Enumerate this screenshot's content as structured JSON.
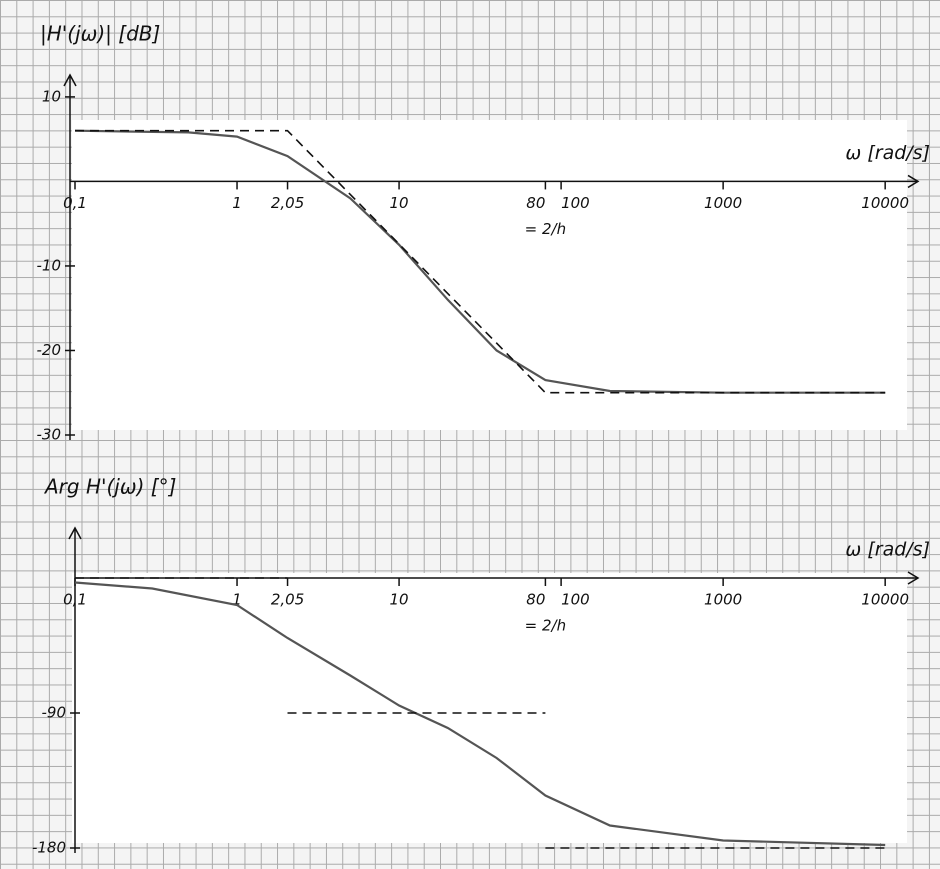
{
  "chart_data": [
    {
      "type": "line",
      "title": "|H'(jω)| [dB]",
      "x_label": "ω [rad/s]",
      "annotation": "= 2/h",
      "annotation_x": 80,
      "log_x": true,
      "xlim": [
        0.1,
        12000
      ],
      "ylim": [
        -30,
        12
      ],
      "xticks": [
        {
          "value": 0.1,
          "label": "0,1"
        },
        1,
        {
          "value": 2.05,
          "label": "2,05"
        },
        10,
        80,
        100,
        1000,
        10000
      ],
      "yticks": [
        10,
        -10,
        -20,
        -30
      ],
      "series": [
        {
          "color": "#555555",
          "dashed": false,
          "x": [
            0.1,
            0.5,
            1,
            2.05,
            5,
            10,
            20,
            40,
            80,
            200,
            1000,
            10000
          ],
          "values": [
            6,
            5.8,
            5.3,
            3,
            -2,
            -7.5,
            -14,
            -20,
            -23.5,
            -24.8,
            -25,
            -25
          ]
        },
        {
          "color": "#111111",
          "dashed": true,
          "x": [
            0.1,
            2.05,
            80,
            10000
          ],
          "values": [
            6,
            6,
            -25,
            -25
          ]
        }
      ]
    },
    {
      "type": "line",
      "title": "Arg H'(jω) [°]",
      "x_label": "ω [rad/s]",
      "annotation": "= 2/h",
      "annotation_x": 80,
      "log_x": true,
      "xlim": [
        0.1,
        12000
      ],
      "ylim": [
        -180,
        30
      ],
      "xticks": [
        {
          "value": 0.1,
          "label": "0,1"
        },
        1,
        {
          "value": 2.05,
          "label": "2,05"
        },
        10,
        80,
        100,
        1000,
        10000
      ],
      "yticks": [
        -90,
        -180
      ],
      "series": [
        {
          "color": "#555555",
          "dashed": false,
          "x": [
            0.1,
            0.3,
            1,
            2.05,
            5,
            10,
            20,
            40,
            80,
            200,
            1000,
            10000
          ],
          "values": [
            -3,
            -7,
            -18,
            -40,
            -65,
            -85,
            -100,
            -120,
            -145,
            -165,
            -175,
            -178
          ]
        },
        {
          "color": "#111111",
          "dashed": true,
          "x": [
            0.1,
            2.05
          ],
          "values": [
            0,
            0
          ]
        },
        {
          "color": "#111111",
          "dashed": true,
          "x": [
            2.05,
            80
          ],
          "values": [
            -90,
            -90
          ]
        },
        {
          "color": "#111111",
          "dashed": true,
          "x": [
            80,
            10000
          ],
          "values": [
            -180,
            -180
          ]
        }
      ]
    }
  ]
}
